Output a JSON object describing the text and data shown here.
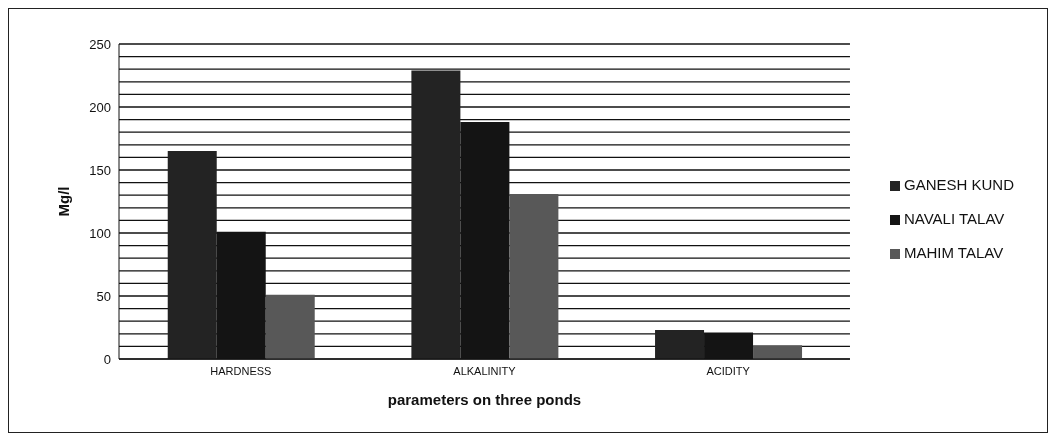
{
  "chart_data": {
    "type": "bar",
    "xlabel": "parameters  on three ponds",
    "ylabel": "Mg/l",
    "categories": [
      "HARDNESS",
      "ALKALINITY",
      "ACIDITY"
    ],
    "series": [
      {
        "name": "GANESH KUND",
        "color": "#232323",
        "values": [
          165,
          229,
          23
        ]
      },
      {
        "name": "NAVALI TALAV",
        "color": "#141414",
        "values": [
          101,
          188,
          21
        ]
      },
      {
        "name": "MAHIM TALAV",
        "color": "#585858",
        "values": [
          51,
          131,
          11
        ]
      }
    ],
    "ylim": [
      0,
      250
    ],
    "yticks": [
      0,
      {
        "value": 10,
        "label": null
      },
      {
        "value": 20,
        "label": null
      },
      {
        "value": 30,
        "label": null
      },
      {
        "value": 40,
        "label": null
      },
      50,
      {
        "value": 60,
        "label": null
      },
      {
        "value": 70,
        "label": null
      },
      {
        "value": 80,
        "label": null
      },
      {
        "value": 90,
        "label": null
      },
      100,
      {
        "value": 110,
        "label": null
      },
      {
        "value": 120,
        "label": null
      },
      {
        "value": 130,
        "label": null
      },
      {
        "value": 140,
        "label": null
      },
      150,
      {
        "value": 160,
        "label": null
      },
      {
        "value": 170,
        "label": null
      },
      {
        "value": 180,
        "label": null
      },
      {
        "value": 190,
        "label": null
      },
      200,
      {
        "value": 210,
        "label": null
      },
      {
        "value": 220,
        "label": null
      },
      {
        "value": 230,
        "label": null
      },
      {
        "value": 240,
        "label": null
      },
      250
    ],
    "grid": "y",
    "legend": "right"
  }
}
